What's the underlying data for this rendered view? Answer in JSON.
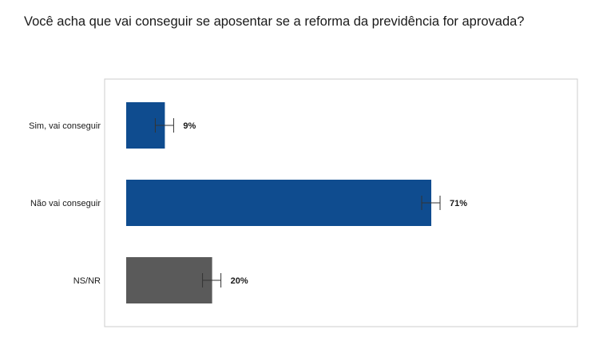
{
  "chart_data": {
    "type": "bar",
    "orientation": "horizontal",
    "title": "Você acha que vai conseguir se aposentar se a reforma da previdência for aprovada?",
    "categories": [
      "Sim, vai conseguir",
      "Não vai conseguir",
      "NS/NR"
    ],
    "values": [
      9,
      71,
      20
    ],
    "value_labels": [
      "9%",
      "71%",
      "20%"
    ],
    "bar_colors": [
      "#0f4c8f",
      "#0f4c8f",
      "#5a5a5a"
    ],
    "error_margin": 2,
    "xlim": [
      0,
      100
    ],
    "grid": false,
    "legend": "none"
  }
}
